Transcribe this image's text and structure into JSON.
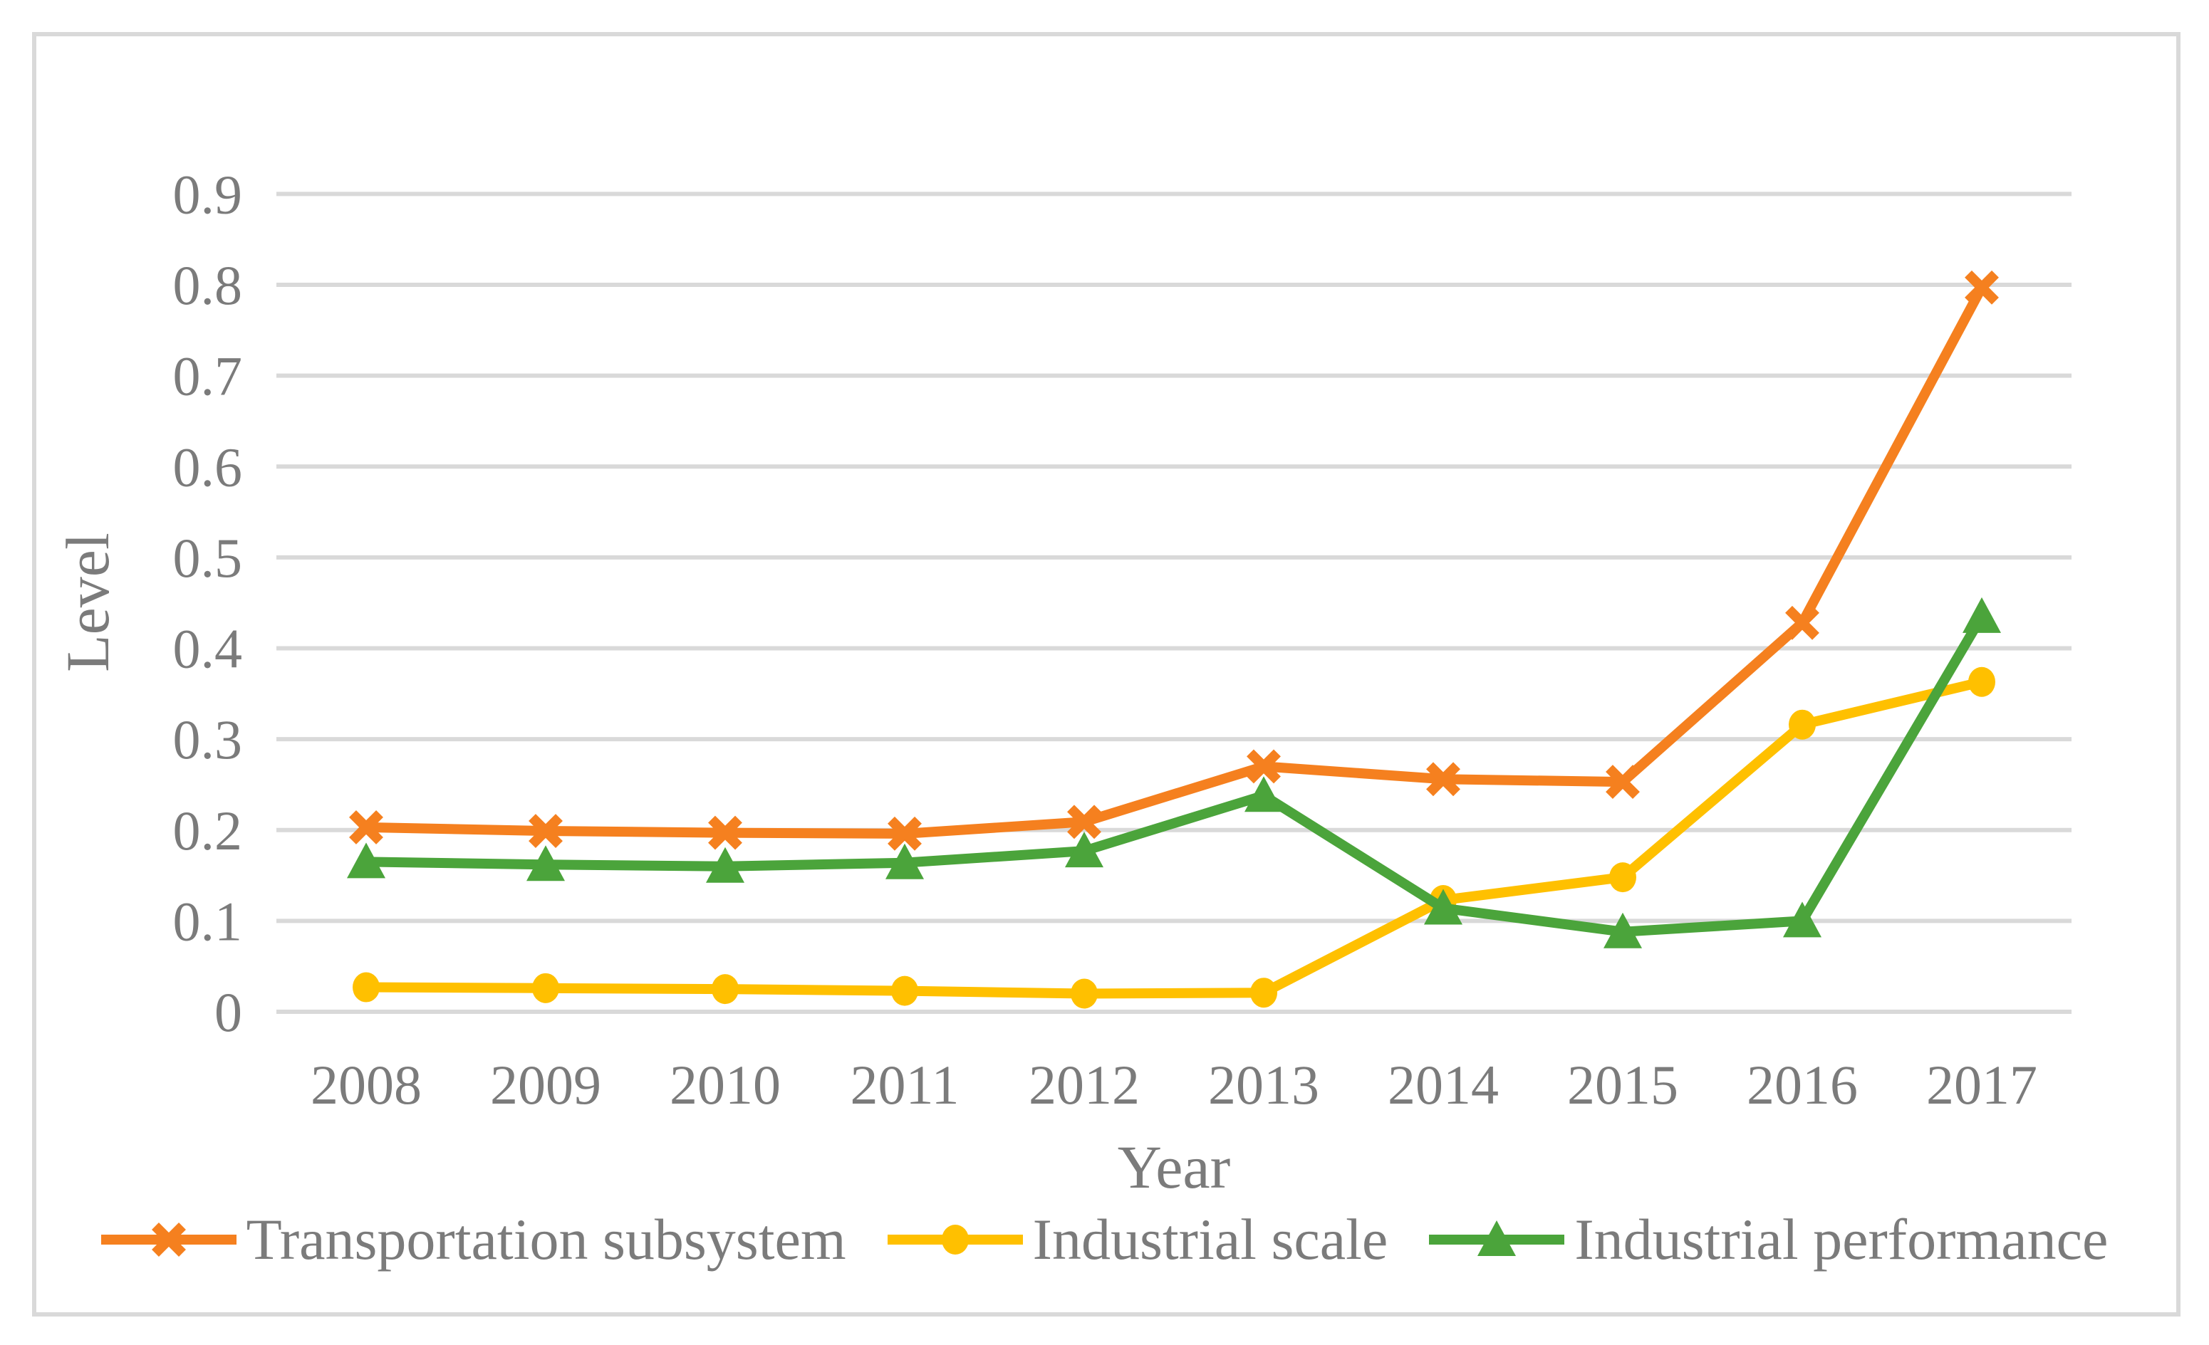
{
  "chart_data": {
    "type": "line",
    "title": "",
    "xlabel": "Year",
    "ylabel": "Level",
    "categories": [
      "2008",
      "2009",
      "2010",
      "2011",
      "2012",
      "2013",
      "2014",
      "2015",
      "2016",
      "2017"
    ],
    "y_ticks": [
      0,
      0.1,
      0.2,
      0.3,
      0.4,
      0.5,
      0.6,
      0.7,
      0.8,
      0.9
    ],
    "y_tick_labels": [
      "0",
      "0.1",
      "0.2",
      "0.3",
      "0.4",
      "0.5",
      "0.6",
      "0.7",
      "0.8",
      "0.9"
    ],
    "ylim": [
      0,
      0.9
    ],
    "grid": true,
    "legend_position": "bottom",
    "series": [
      {
        "name": "Transportation subsystem",
        "marker": "x",
        "color": "#F5801F",
        "values": [
          0.203,
          0.199,
          0.197,
          0.196,
          0.209,
          0.27,
          0.256,
          0.253,
          0.428,
          0.797
        ]
      },
      {
        "name": "Industrial scale",
        "marker": "circle",
        "color": "#FFC000",
        "values": [
          0.027,
          0.026,
          0.025,
          0.023,
          0.02,
          0.021,
          0.123,
          0.148,
          0.316,
          0.363
        ]
      },
      {
        "name": "Industrial performance",
        "marker": "triangle",
        "color": "#4BA43B",
        "values": [
          0.165,
          0.162,
          0.16,
          0.164,
          0.177,
          0.238,
          0.114,
          0.088,
          0.1,
          0.435
        ]
      }
    ]
  },
  "styles": {
    "grid_color": "#D9D9D9",
    "frame_color": "#D9D9D9",
    "text_color": "#7B7B7B",
    "background": "#FFFFFF"
  }
}
